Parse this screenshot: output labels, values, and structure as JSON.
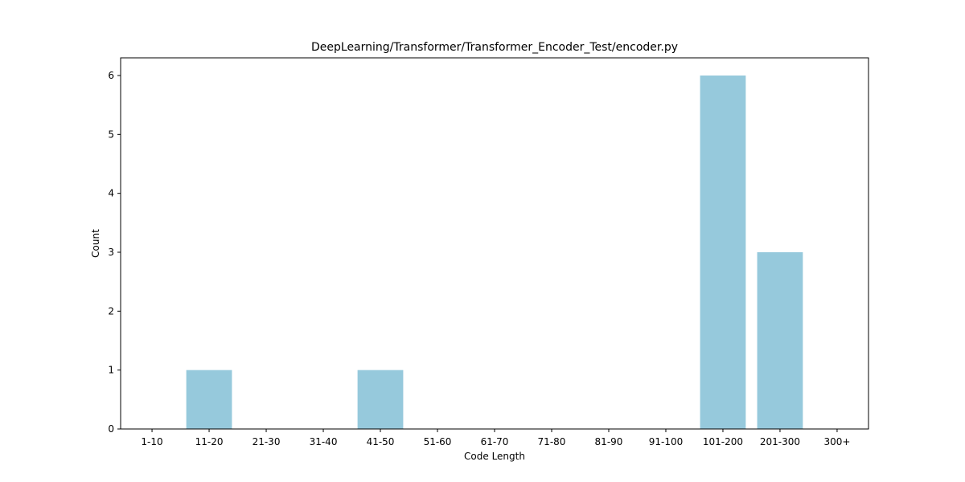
{
  "chart_data": {
    "type": "bar",
    "title": "DeepLearning/Transformer/Transformer_Encoder_Test/encoder.py",
    "xlabel": "Code Length",
    "ylabel": "Count",
    "categories": [
      "1-10",
      "11-20",
      "21-30",
      "31-40",
      "41-50",
      "51-60",
      "61-70",
      "71-80",
      "81-90",
      "91-100",
      "101-200",
      "201-300",
      "300+"
    ],
    "values": [
      0,
      1,
      0,
      0,
      1,
      0,
      0,
      0,
      0,
      0,
      6,
      3,
      0
    ],
    "ylim": [
      0,
      6.3
    ],
    "yticks": [
      0,
      1,
      2,
      3,
      4,
      5,
      6
    ],
    "bar_color": "#96c9dc",
    "grid": false,
    "legend": "none"
  }
}
